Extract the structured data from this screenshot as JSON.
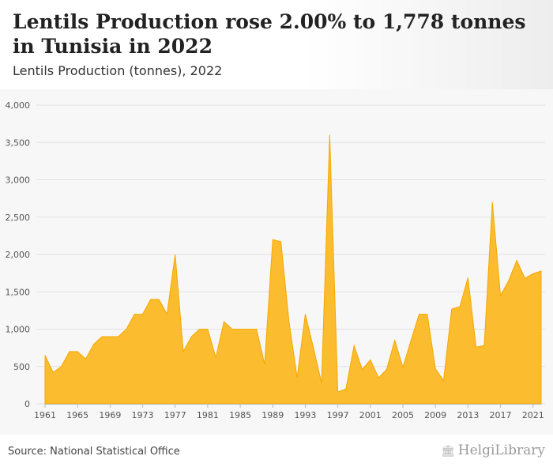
{
  "header": {
    "title": "Lentils Production rose 2.00% to 1,778 tonnes in Tunisia in 2022",
    "subtitle": "Lentils Production (tonnes), 2022"
  },
  "footer": {
    "source": "Source: National Statistical Office",
    "brand": "HelgiLibrary",
    "brand_icon": "library-building-icon"
  },
  "colors": {
    "area_fill": "#fbbc2f",
    "area_stroke": "#f5a800",
    "grid": "#e2e2e2",
    "plot_background": "#f7f7f7"
  },
  "chart_data": {
    "type": "area",
    "title": "Lentils Production rose 2.00% to 1,778 tonnes in Tunisia in 2022",
    "subtitle": "Lentils Production (tonnes), 2022",
    "xlabel": "",
    "ylabel": "",
    "ylim": [
      0,
      4000
    ],
    "yticks": [
      0,
      500,
      1000,
      1500,
      2000,
      2500,
      3000,
      3500,
      4000
    ],
    "ytick_labels": [
      "0",
      "500",
      "1,000",
      "1,500",
      "2,000",
      "2,500",
      "3,000",
      "3,500",
      "4,000"
    ],
    "xticks": [
      1961,
      1965,
      1969,
      1973,
      1977,
      1981,
      1985,
      1989,
      1993,
      1997,
      2001,
      2005,
      2009,
      2013,
      2017,
      2021
    ],
    "grid": true,
    "legend": "none",
    "x": [
      1961,
      1962,
      1963,
      1964,
      1965,
      1966,
      1967,
      1968,
      1969,
      1970,
      1971,
      1972,
      1973,
      1974,
      1975,
      1976,
      1977,
      1978,
      1979,
      1980,
      1981,
      1982,
      1983,
      1984,
      1985,
      1986,
      1987,
      1988,
      1989,
      1990,
      1991,
      1992,
      1993,
      1994,
      1995,
      1996,
      1997,
      1998,
      1999,
      2000,
      2001,
      2002,
      2003,
      2004,
      2005,
      2006,
      2007,
      2008,
      2009,
      2010,
      2011,
      2012,
      2013,
      2014,
      2015,
      2016,
      2017,
      2018,
      2019,
      2020,
      2021,
      2022
    ],
    "series": [
      {
        "values": [
          650,
          420,
          500,
          700,
          700,
          600,
          800,
          900,
          900,
          900,
          1000,
          1200,
          1200,
          1400,
          1400,
          1200,
          2000,
          700,
          900,
          1000,
          1000,
          620,
          1100,
          1000,
          1000,
          1000,
          1000,
          530,
          2200,
          2170,
          1100,
          350,
          1200,
          750,
          280,
          3600,
          160,
          200,
          780,
          460,
          590,
          350,
          460,
          850,
          490,
          850,
          1200,
          1200,
          470,
          310,
          1270,
          1300,
          1690,
          760,
          780,
          2700,
          1450,
          1650,
          1920,
          1680,
          1743,
          1778
        ]
      }
    ]
  }
}
